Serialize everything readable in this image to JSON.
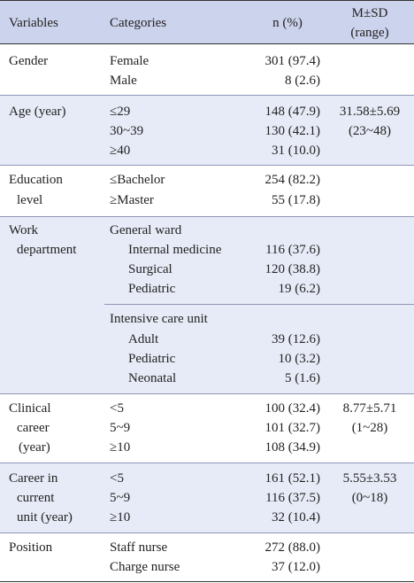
{
  "header": {
    "variables": "Variables",
    "categories": "Categories",
    "n_pct": "n (%)",
    "msd": "M±SD",
    "range": "(range)"
  },
  "rows": {
    "gender": {
      "var": "Gender",
      "cats": [
        "Female",
        "Male"
      ],
      "ns": [
        "301 (97.4)",
        "8 (2.6)"
      ]
    },
    "age": {
      "var": "Age (year)",
      "cats": [
        "≤29",
        "30~39",
        "≥40"
      ],
      "ns": [
        "148 (47.9)",
        "130 (42.1)",
        "31 (10.0)"
      ],
      "msd": "31.58±5.69",
      "range": "(23~48)"
    },
    "education": {
      "var1": "Education",
      "var2": "level",
      "cats": [
        "≤Bachelor",
        "≥Master"
      ],
      "ns": [
        "254 (82.2)",
        "55 (17.8)"
      ]
    },
    "work": {
      "var1": "Work",
      "var2": "department",
      "group1": "General ward",
      "g1_cats": [
        "Internal medicine",
        "Surgical",
        "Pediatric"
      ],
      "g1_ns": [
        "116 (37.6)",
        "120 (38.8)",
        "19 (6.2)"
      ],
      "group2": "Intensive care unit",
      "g2_cats": [
        "Adult",
        "Pediatric",
        "Neonatal"
      ],
      "g2_ns": [
        "39 (12.6)",
        "10 (3.2)",
        "5 (1.6)"
      ]
    },
    "clinical": {
      "var1": "Clinical",
      "var2": "career",
      "var3": "(year)",
      "cats": [
        "<5",
        "5~9",
        "≥10"
      ],
      "ns": [
        "100 (32.4)",
        "101 (32.7)",
        "108 (34.9)"
      ],
      "msd": "8.77±5.71",
      "range": "(1~28)"
    },
    "current": {
      "var1": "Career in",
      "var2": "current",
      "var3": "unit (year)",
      "cats": [
        "<5",
        "5~9",
        "≥10"
      ],
      "ns": [
        "161 (52.1)",
        "116 (37.5)",
        "32 (10.4)"
      ],
      "msd": "5.55±3.53",
      "range": "(0~18)"
    },
    "position": {
      "var": "Position",
      "cats": [
        "Staff nurse",
        "Charge nurse"
      ],
      "ns": [
        "272 (88.0)",
        "37 (12.0)"
      ]
    }
  },
  "colors": {
    "header_bg": "#ccd3ec",
    "shade_bg": "#e7ebf7",
    "rule": "#8f96b8"
  }
}
